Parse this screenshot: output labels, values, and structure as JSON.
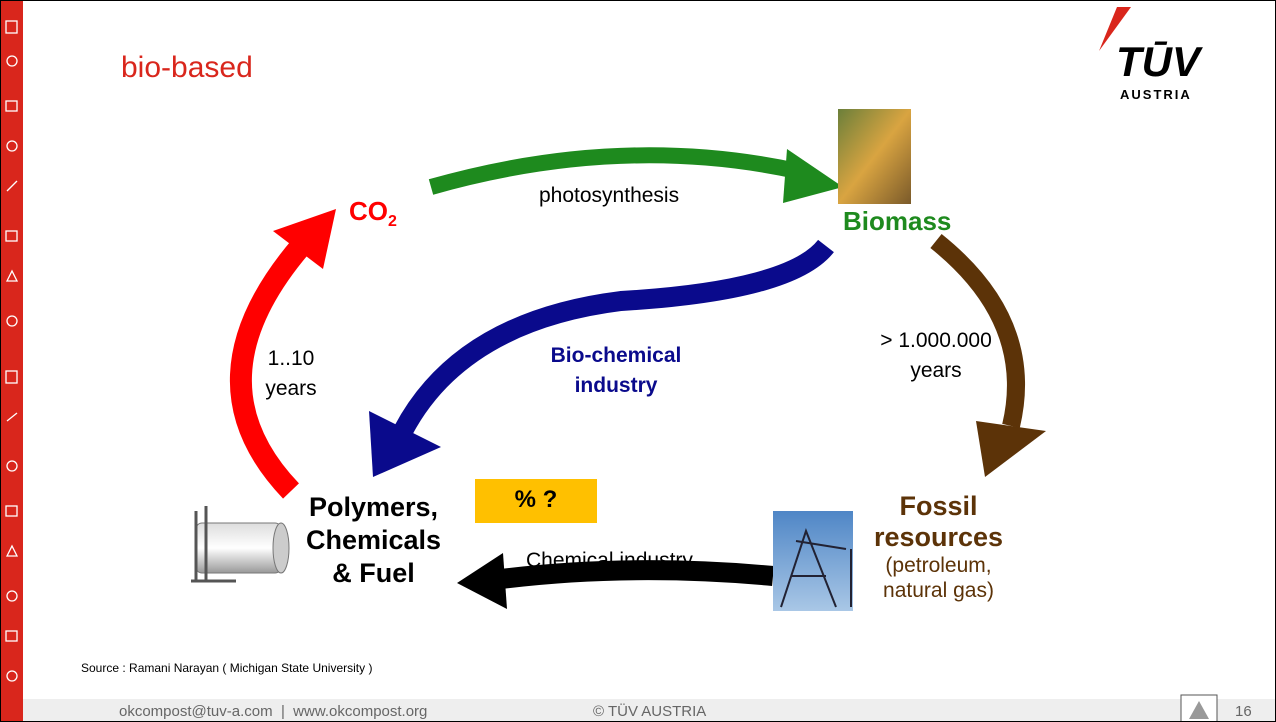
{
  "header": {
    "title": "bio-based",
    "logo": {
      "mark": "TŪV",
      "name": "AUSTRIA"
    }
  },
  "nodes": {
    "co2": {
      "label": "CO",
      "subscript": "2"
    },
    "biomass": {
      "label": "Biomass"
    },
    "polymers": {
      "lines": [
        "Polymers,",
        "Chemicals",
        "& Fuel"
      ]
    },
    "fossil": {
      "lines": [
        "Fossil",
        "resources"
      ],
      "note": [
        "(petroleum,",
        "natural gas)"
      ]
    }
  },
  "edges": {
    "photosynthesis": {
      "label": "photosynthesis"
    },
    "fossilization": {
      "lines": [
        "> 1.000.000",
        "years"
      ]
    },
    "biochemical": {
      "lines": [
        "Bio-chemical",
        "industry"
      ]
    },
    "chemical": {
      "label": "Chemical industry"
    },
    "degradation": {
      "lines": [
        "1..10",
        "years"
      ]
    }
  },
  "badge": "% ?",
  "source": "Source : Ramani Narayan ( Michigan State University )",
  "footer": {
    "contact": "okcompost@tuv-a.com  |  www.okcompost.org",
    "copyright": "© TÜV AUSTRIA",
    "page": "16"
  }
}
